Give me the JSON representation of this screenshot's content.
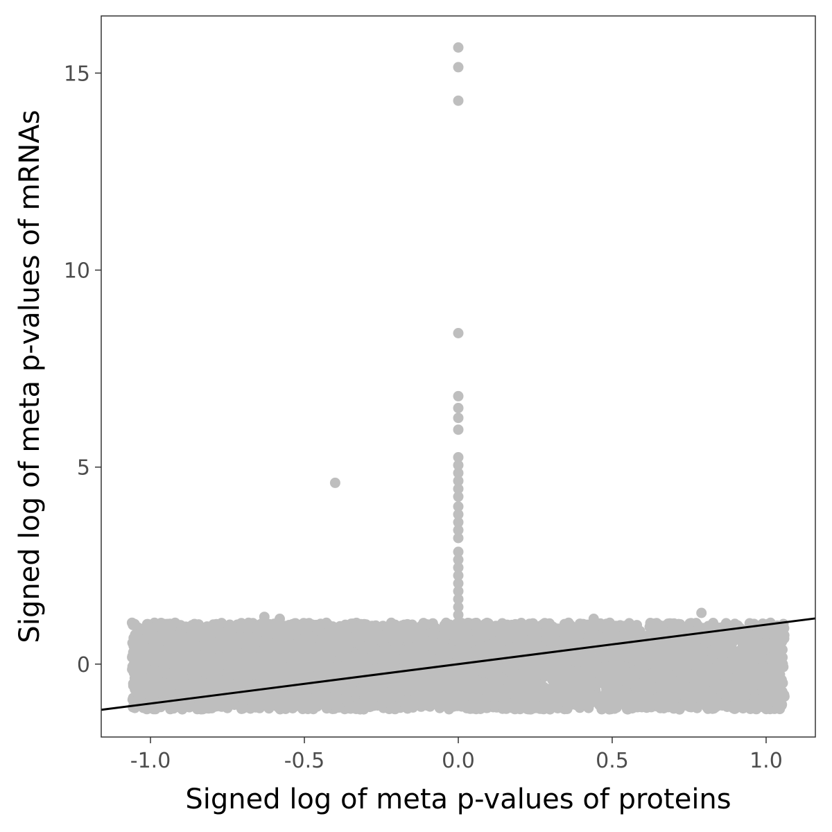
{
  "chart_data": {
    "type": "scatter",
    "title": "",
    "xlabel": "Signed log of meta p-values of proteins",
    "ylabel": "Signed log of meta p-values of mRNAs",
    "xlim": [
      -1.16,
      1.16
    ],
    "ylim": [
      -1.85,
      16.45
    ],
    "xticks": [
      -1.0,
      -0.5,
      0.0,
      0.5,
      1.0
    ],
    "xtick_labels": [
      "-1.0",
      "-0.5",
      "0.0",
      "0.5",
      "1.0"
    ],
    "yticks": [
      0,
      5,
      10,
      15
    ],
    "ytick_labels": [
      "0",
      "5",
      "10",
      "15"
    ],
    "grid": false,
    "point_color": "#bebebe",
    "line_color": "#000000",
    "frame_color": "#333333",
    "cloud": {
      "x_range": [
        -1.06,
        1.06
      ],
      "y_range": [
        -1.15,
        1.05
      ]
    },
    "series": [
      {
        "points": [
          [
            0.0,
            15.65
          ],
          [
            0.0,
            15.15
          ],
          [
            0.0,
            14.3
          ],
          [
            0.0,
            8.4
          ],
          [
            0.0,
            6.8
          ],
          [
            0.0,
            6.5
          ],
          [
            0.0,
            6.25
          ],
          [
            0.0,
            5.95
          ],
          [
            0.0,
            5.25
          ],
          [
            0.0,
            5.05
          ],
          [
            0.0,
            4.85
          ],
          [
            0.0,
            4.65
          ],
          [
            0.0,
            4.45
          ],
          [
            0.0,
            4.25
          ],
          [
            0.0,
            4.0
          ],
          [
            0.0,
            3.8
          ],
          [
            0.0,
            3.6
          ],
          [
            0.0,
            3.4
          ],
          [
            0.0,
            3.2
          ],
          [
            0.0,
            2.85
          ],
          [
            0.0,
            2.65
          ],
          [
            0.0,
            2.45
          ],
          [
            0.0,
            2.25
          ],
          [
            0.0,
            2.05
          ],
          [
            0.0,
            1.85
          ],
          [
            0.0,
            1.65
          ],
          [
            0.0,
            1.45
          ],
          [
            0.0,
            1.25
          ],
          [
            -0.4,
            4.6
          ],
          [
            -0.63,
            1.2
          ],
          [
            0.79,
            1.3
          ],
          [
            -0.58,
            1.15
          ],
          [
            0.44,
            1.15
          ],
          [
            -0.92,
            1.05
          ],
          [
            -1.06,
            1.05
          ],
          [
            0.6,
            -1.05
          ],
          [
            0.99,
            -1.05
          ],
          [
            -0.16,
            -1.1
          ],
          [
            0.08,
            -1.1
          ]
        ]
      }
    ],
    "trend_line": {
      "intercept": 0.0,
      "slope": 1.0,
      "x_range": [
        -1.16,
        1.16
      ]
    }
  }
}
